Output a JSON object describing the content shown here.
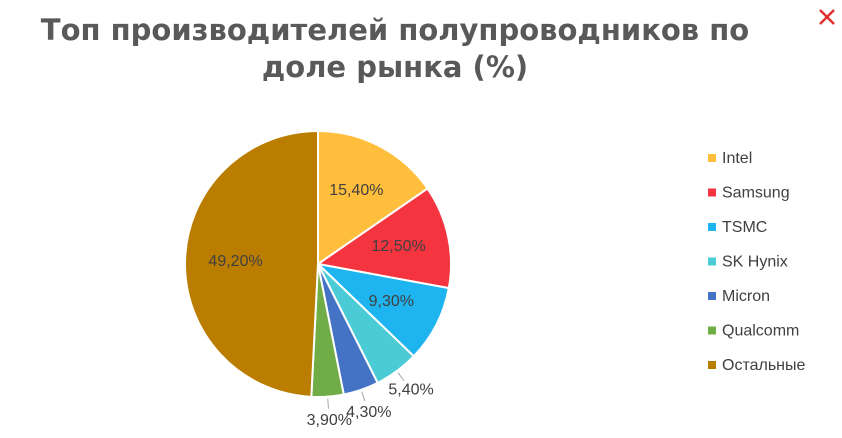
{
  "chart_data": {
    "type": "pie",
    "title": "Топ производителей полупроводников по доле рынка (%)",
    "categories": [
      "Intel",
      "Samsung",
      "TSMC",
      "SK Hynix",
      "Micron",
      "Qualcomm",
      "Остальные"
    ],
    "values": [
      15.4,
      12.5,
      9.3,
      5.4,
      4.3,
      3.9,
      49.2
    ],
    "value_labels": [
      "15,40%",
      "12,50%",
      "9,30%",
      "5,40%",
      "4,30%",
      "3,90%",
      "49,20%"
    ],
    "colors": [
      "#FFBE3B",
      "#F4343F",
      "#1EB4F0",
      "#4ACBD6",
      "#4472C4",
      "#70AD47",
      "#BA7D00"
    ],
    "legend": "right"
  }
}
